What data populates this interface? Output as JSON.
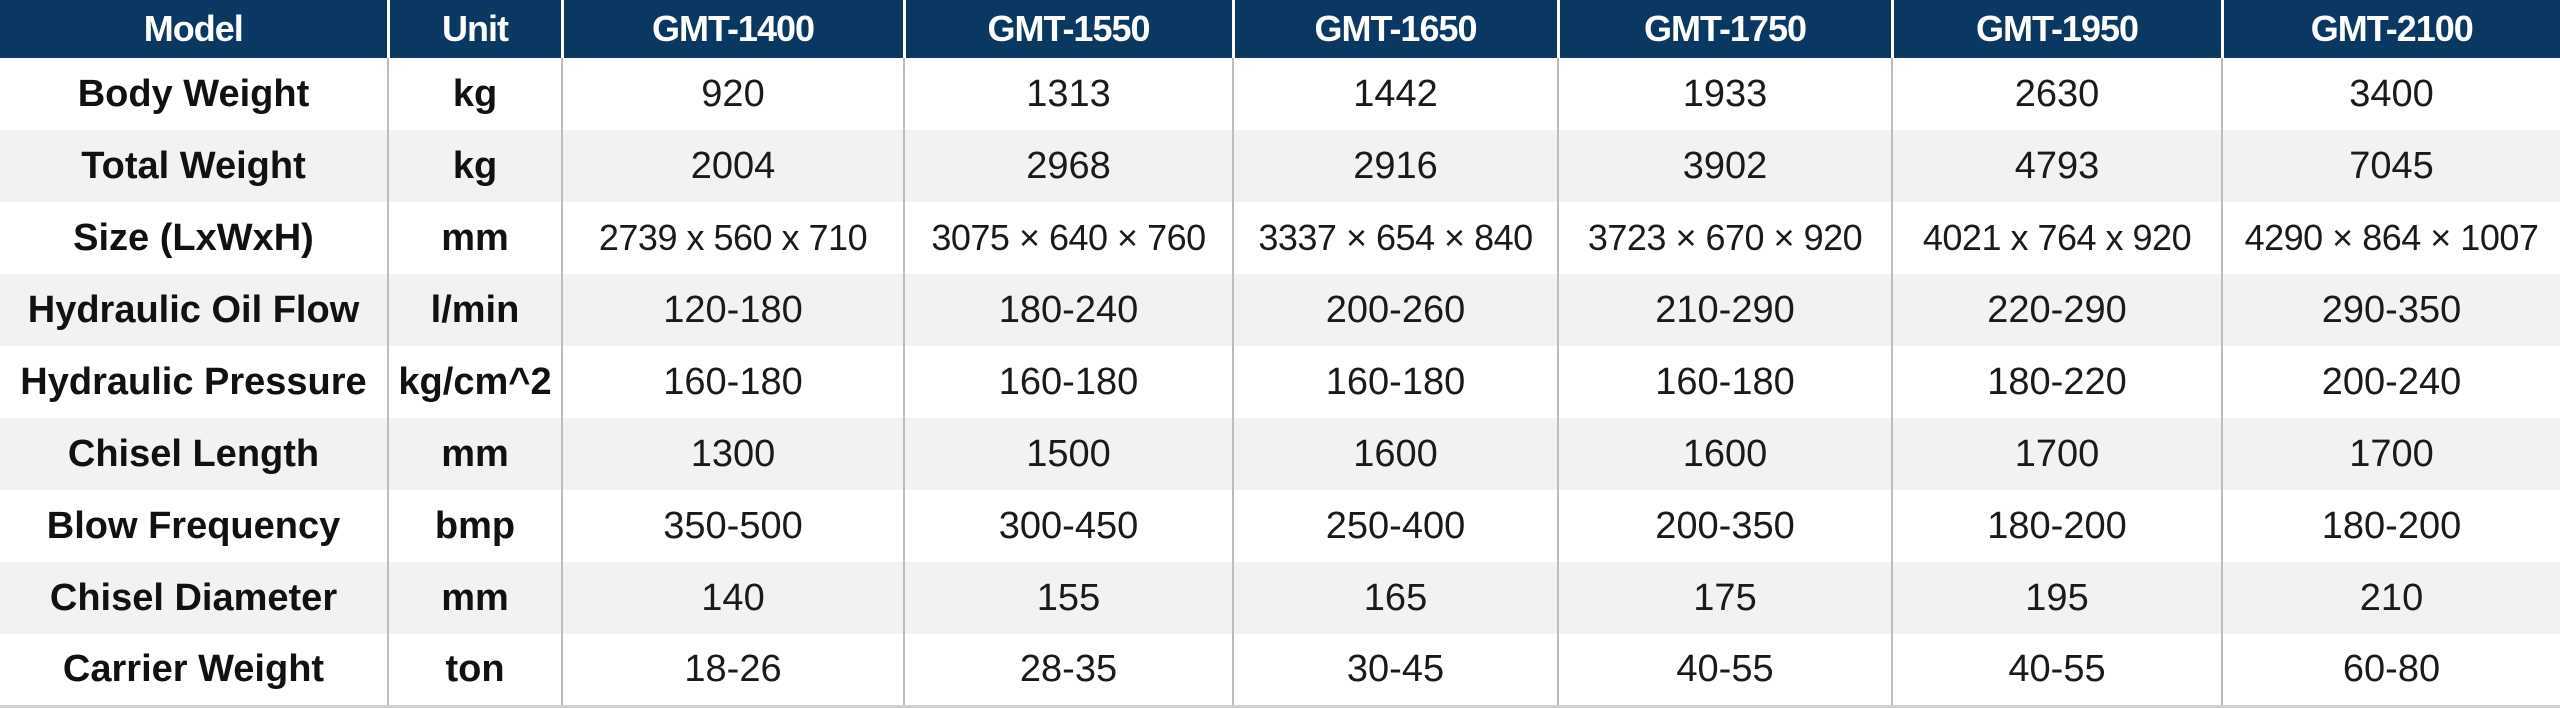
{
  "header": {
    "model": "Model",
    "unit": "Unit",
    "models": [
      "GMT-1400",
      "GMT-1550",
      "GMT-1650",
      "GMT-1750",
      "GMT-1950",
      "GMT-2100"
    ]
  },
  "rows": [
    {
      "label": "Body Weight",
      "unit": "kg",
      "values": [
        "920",
        "1313",
        "1442",
        "1933",
        "2630",
        "3400"
      ]
    },
    {
      "label": "Total Weight",
      "unit": "kg",
      "values": [
        "2004",
        "2968",
        "2916",
        "3902",
        "4793",
        "7045"
      ]
    },
    {
      "label": "Size (LxWxH)",
      "unit": "mm",
      "values": [
        "2739 x 560 x 710",
        "3075 × 640 × 760",
        "3337 × 654 × 840",
        "3723 × 670 × 920",
        "4021 x 764 x 920",
        "4290 × 864 × 1007"
      ]
    },
    {
      "label": "Hydraulic Oil Flow",
      "unit": "l/min",
      "values": [
        "120-180",
        "180-240",
        "200-260",
        "210-290",
        "220-290",
        "290-350"
      ]
    },
    {
      "label": "Hydraulic Pressure",
      "unit": "kg/cm^2",
      "values": [
        "160-180",
        "160-180",
        "160-180",
        "160-180",
        "180-220",
        "200-240"
      ]
    },
    {
      "label": "Chisel Length",
      "unit": "mm",
      "values": [
        "1300",
        "1500",
        "1600",
        "1600",
        "1700",
        "1700"
      ]
    },
    {
      "label": "Blow Frequency",
      "unit": "bmp",
      "values": [
        "350-500",
        "300-450",
        "250-400",
        "200-350",
        "180-200",
        "180-200"
      ]
    },
    {
      "label": "Chisel Diameter",
      "unit": "mm",
      "values": [
        "140",
        "155",
        "165",
        "175",
        "195",
        "210"
      ]
    },
    {
      "label": "Carrier Weight",
      "unit": "ton",
      "values": [
        "18-26",
        "28-35",
        "30-45",
        "40-55",
        "40-55",
        "60-80"
      ]
    }
  ]
}
